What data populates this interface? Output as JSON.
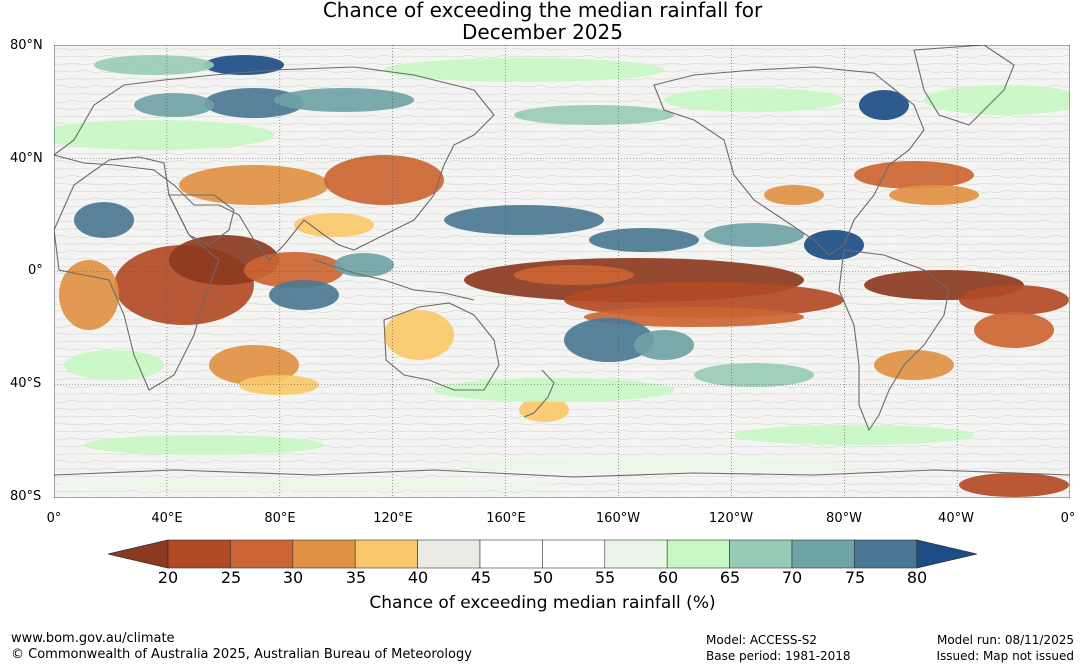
{
  "title": {
    "line1": "Chance of exceeding the median rainfall for",
    "line2": "December 2025"
  },
  "lat_labels": [
    "80°N",
    "40°N",
    "0°",
    "40°S",
    "80°S"
  ],
  "lon_labels": [
    "0°",
    "40°E",
    "80°E",
    "120°E",
    "160°E",
    "160°W",
    "120°W",
    "80°W",
    "40°W",
    "0°"
  ],
  "colorbar": {
    "ticks": [
      "20",
      "25",
      "30",
      "35",
      "40",
      "45",
      "50",
      "55",
      "60",
      "65",
      "70",
      "75",
      "80"
    ],
    "colors": [
      "#8b3a1f",
      "#b24a26",
      "#cc6533",
      "#e09144",
      "#f9c86a",
      "#ebebe6",
      "#ffffff",
      "#ffffff",
      "#eaf6e8",
      "#c8f7c6",
      "#98cbb6",
      "#6fa3a6",
      "#4a7894",
      "#1c4d86"
    ],
    "label": "Chance of exceeding median rainfall (%)"
  },
  "footer": {
    "url": "www.bom.gov.au/climate",
    "copyright": "© Commonwealth of Australia 2025, Australian Bureau of Meteorology",
    "model": "Model: ACCESS-S2",
    "base_period": "Base period: 1981-2018",
    "model_run": "Model run: 08/11/2025",
    "issued": "Issued: Map not issued"
  }
}
